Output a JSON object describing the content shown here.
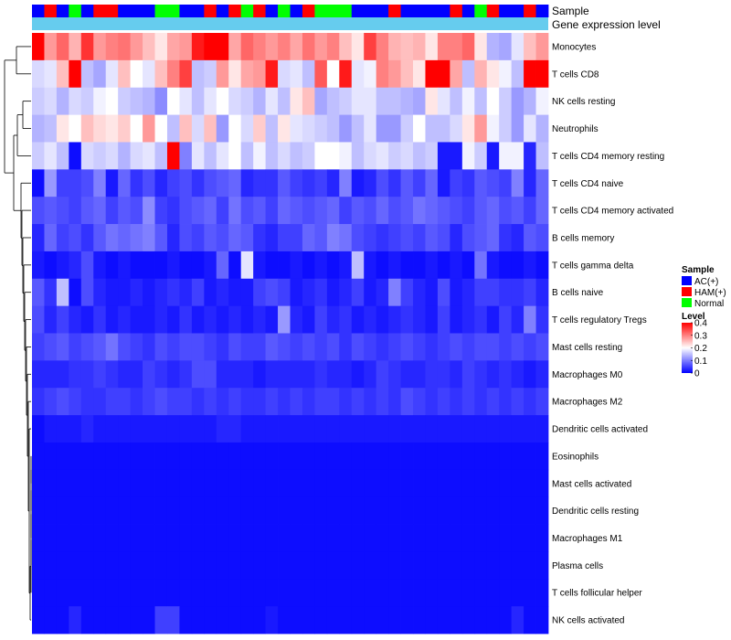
{
  "colors": {
    "AC": "#0000ff",
    "HAM": "#ff0000",
    "Normal": "#00ff00",
    "gene_bar": "#66ccee",
    "low": "#0000ff",
    "mid": "#ffffff",
    "high": "#ff0000"
  },
  "chart_data": {
    "type": "heatmap",
    "annotation_labels": [
      "Sample",
      "Gene expression level"
    ],
    "sample_groups": [
      "AC",
      "HAM",
      "AC",
      "Normal",
      "AC",
      "HAM",
      "HAM",
      "AC",
      "AC",
      "AC",
      "Normal",
      "Normal",
      "AC",
      "AC",
      "HAM",
      "AC",
      "HAM",
      "Normal",
      "HAM",
      "AC",
      "Normal",
      "AC",
      "HAM",
      "Normal",
      "Normal",
      "Normal",
      "AC",
      "AC",
      "AC",
      "HAM",
      "AC",
      "AC",
      "AC",
      "AC",
      "HAM",
      "AC",
      "Normal",
      "HAM",
      "AC",
      "AC",
      "HAM",
      "AC"
    ],
    "rows": [
      "Monocytes",
      "T cells CD8",
      "NK cells resting",
      "Neutrophils",
      "T cells CD4 memory resting",
      "T cells CD4 naive",
      "T cells CD4 memory activated",
      "B cells memory",
      "T cells gamma delta",
      "B cells naive",
      "T cells regulatory  Tregs",
      "Mast cells resting",
      "Macrophages M0",
      "Macrophages M2",
      "Dendritic cells activated",
      "Eosinophils",
      "Mast cells activated",
      "Dendritic cells resting",
      "Macrophages M1",
      "Plasma cells",
      "T cells follicular helper",
      "NK cells activated"
    ],
    "values": [
      [
        0.4,
        0.28,
        0.32,
        0.26,
        0.36,
        0.28,
        0.3,
        0.31,
        0.28,
        0.25,
        0.22,
        0.27,
        0.28,
        0.38,
        0.4,
        0.4,
        0.27,
        0.32,
        0.3,
        0.28,
        0.3,
        0.27,
        0.31,
        0.28,
        0.3,
        0.25,
        0.22,
        0.35,
        0.3,
        0.26,
        0.25,
        0.26,
        0.22,
        0.3,
        0.3,
        0.32,
        0.22,
        0.14,
        0.13,
        0.18,
        0.25,
        0.28
      ],
      [
        0.17,
        0.18,
        0.25,
        0.4,
        0.15,
        0.13,
        0.18,
        0.25,
        0.2,
        0.18,
        0.25,
        0.3,
        0.35,
        0.15,
        0.16,
        0.28,
        0.22,
        0.27,
        0.28,
        0.38,
        0.17,
        0.18,
        0.15,
        0.33,
        0.2,
        0.38,
        0.18,
        0.19,
        0.3,
        0.28,
        0.25,
        0.22,
        0.4,
        0.4,
        0.27,
        0.15,
        0.26,
        0.22,
        0.19,
        0.15,
        0.4,
        0.4
      ],
      [
        0.16,
        0.17,
        0.14,
        0.17,
        0.16,
        0.19,
        0.2,
        0.16,
        0.15,
        0.14,
        0.11,
        0.2,
        0.18,
        0.15,
        0.18,
        0.2,
        0.17,
        0.16,
        0.14,
        0.18,
        0.15,
        0.22,
        0.25,
        0.13,
        0.15,
        0.16,
        0.18,
        0.18,
        0.15,
        0.15,
        0.14,
        0.13,
        0.22,
        0.18,
        0.15,
        0.19,
        0.15,
        0.2,
        0.16,
        0.12,
        0.14,
        0.19
      ],
      [
        0.14,
        0.15,
        0.22,
        0.2,
        0.25,
        0.23,
        0.22,
        0.24,
        0.2,
        0.28,
        0.2,
        0.15,
        0.25,
        0.17,
        0.25,
        0.12,
        0.2,
        0.17,
        0.24,
        0.15,
        0.22,
        0.18,
        0.17,
        0.16,
        0.15,
        0.12,
        0.15,
        0.18,
        0.12,
        0.12,
        0.16,
        0.2,
        0.15,
        0.15,
        0.17,
        0.22,
        0.28,
        0.19,
        0.16,
        0.12,
        0.18,
        0.14
      ],
      [
        0.16,
        0.18,
        0.15,
        0.01,
        0.17,
        0.16,
        0.17,
        0.14,
        0.17,
        0.18,
        0.15,
        0.4,
        0.1,
        0.18,
        0.15,
        0.18,
        0.2,
        0.15,
        0.19,
        0.15,
        0.17,
        0.15,
        0.16,
        0.2,
        0.2,
        0.19,
        0.15,
        0.17,
        0.18,
        0.16,
        0.17,
        0.15,
        0.16,
        0.02,
        0.02,
        0.19,
        0.16,
        0.02,
        0.19,
        0.19,
        0.03,
        0.15
      ],
      [
        0.01,
        0.12,
        0.05,
        0.05,
        0.06,
        0.1,
        0.02,
        0.08,
        0.04,
        0.06,
        0.03,
        0.05,
        0.06,
        0.04,
        0.06,
        0.07,
        0.08,
        0.03,
        0.04,
        0.04,
        0.07,
        0.05,
        0.04,
        0.05,
        0.03,
        0.1,
        0.02,
        0.03,
        0.06,
        0.04,
        0.07,
        0.05,
        0.08,
        0.02,
        0.05,
        0.04,
        0.07,
        0.06,
        0.05,
        0.1,
        0.03,
        0.08
      ],
      [
        0.06,
        0.07,
        0.06,
        0.05,
        0.07,
        0.08,
        0.05,
        0.07,
        0.06,
        0.11,
        0.05,
        0.04,
        0.06,
        0.07,
        0.08,
        0.05,
        0.09,
        0.06,
        0.07,
        0.05,
        0.08,
        0.07,
        0.06,
        0.07,
        0.08,
        0.05,
        0.07,
        0.06,
        0.08,
        0.06,
        0.07,
        0.09,
        0.08,
        0.07,
        0.06,
        0.05,
        0.07,
        0.08,
        0.06,
        0.07,
        0.05,
        0.08
      ],
      [
        0.03,
        0.08,
        0.05,
        0.06,
        0.04,
        0.07,
        0.09,
        0.08,
        0.09,
        0.1,
        0.07,
        0.03,
        0.06,
        0.05,
        0.07,
        0.06,
        0.08,
        0.07,
        0.04,
        0.03,
        0.05,
        0.05,
        0.08,
        0.07,
        0.1,
        0.09,
        0.06,
        0.05,
        0.04,
        0.05,
        0.06,
        0.05,
        0.07,
        0.06,
        0.03,
        0.06,
        0.07,
        0.08,
        0.04,
        0.03,
        0.07,
        0.06
      ],
      [
        0.02,
        0.01,
        0.02,
        0.03,
        0.06,
        0.02,
        0.01,
        0.02,
        0.01,
        0.01,
        0.01,
        0.02,
        0.01,
        0.01,
        0.02,
        0.08,
        0.01,
        0.18,
        0.02,
        0.01,
        0.01,
        0.02,
        0.01,
        0.02,
        0.01,
        0.02,
        0.15,
        0.02,
        0.01,
        0.02,
        0.01,
        0.01,
        0.02,
        0.01,
        0.02,
        0.01,
        0.09,
        0.02,
        0.01,
        0.01,
        0.02,
        0.01
      ],
      [
        0.07,
        0.04,
        0.15,
        0.01,
        0.06,
        0.03,
        0.02,
        0.02,
        0.03,
        0.02,
        0.03,
        0.04,
        0.03,
        0.05,
        0.02,
        0.03,
        0.02,
        0.02,
        0.05,
        0.06,
        0.05,
        0.02,
        0.03,
        0.04,
        0.02,
        0.03,
        0.05,
        0.02,
        0.03,
        0.1,
        0.05,
        0.03,
        0.02,
        0.06,
        0.02,
        0.03,
        0.05,
        0.05,
        0.04,
        0.04,
        0.05,
        0.03
      ],
      [
        0.06,
        0.03,
        0.05,
        0.03,
        0.02,
        0.04,
        0.02,
        0.03,
        0.02,
        0.02,
        0.03,
        0.02,
        0.04,
        0.02,
        0.03,
        0.02,
        0.03,
        0.02,
        0.03,
        0.02,
        0.12,
        0.03,
        0.02,
        0.05,
        0.03,
        0.04,
        0.02,
        0.03,
        0.02,
        0.03,
        0.04,
        0.03,
        0.02,
        0.05,
        0.02,
        0.03,
        0.04,
        0.02,
        0.05,
        0.03,
        0.1,
        0.04
      ],
      [
        0.05,
        0.06,
        0.07,
        0.05,
        0.06,
        0.07,
        0.09,
        0.06,
        0.05,
        0.04,
        0.06,
        0.05,
        0.06,
        0.06,
        0.05,
        0.04,
        0.06,
        0.05,
        0.05,
        0.07,
        0.06,
        0.05,
        0.06,
        0.05,
        0.06,
        0.04,
        0.06,
        0.05,
        0.04,
        0.05,
        0.06,
        0.05,
        0.04,
        0.05,
        0.06,
        0.05,
        0.06,
        0.06,
        0.05,
        0.06,
        0.05,
        0.06
      ],
      [
        0.03,
        0.03,
        0.03,
        0.04,
        0.04,
        0.05,
        0.04,
        0.03,
        0.03,
        0.05,
        0.04,
        0.03,
        0.04,
        0.06,
        0.06,
        0.03,
        0.03,
        0.03,
        0.02,
        0.03,
        0.03,
        0.03,
        0.03,
        0.04,
        0.03,
        0.03,
        0.02,
        0.03,
        0.05,
        0.04,
        0.03,
        0.03,
        0.04,
        0.04,
        0.03,
        0.05,
        0.04,
        0.03,
        0.04,
        0.03,
        0.02,
        0.03
      ],
      [
        0.04,
        0.05,
        0.06,
        0.05,
        0.04,
        0.04,
        0.05,
        0.05,
        0.04,
        0.05,
        0.06,
        0.05,
        0.05,
        0.04,
        0.05,
        0.04,
        0.05,
        0.04,
        0.04,
        0.05,
        0.04,
        0.05,
        0.04,
        0.05,
        0.05,
        0.04,
        0.05,
        0.04,
        0.05,
        0.04,
        0.06,
        0.05,
        0.04,
        0.05,
        0.04,
        0.05,
        0.04,
        0.05,
        0.04,
        0.05,
        0.04,
        0.05
      ],
      [
        0.01,
        0.02,
        0.02,
        0.02,
        0.03,
        0.02,
        0.02,
        0.02,
        0.02,
        0.02,
        0.02,
        0.02,
        0.02,
        0.02,
        0.02,
        0.03,
        0.03,
        0.02,
        0.02,
        0.02,
        0.02,
        0.02,
        0.02,
        0.02,
        0.02,
        0.02,
        0.02,
        0.02,
        0.02,
        0.02,
        0.02,
        0.02,
        0.02,
        0.02,
        0.02,
        0.02,
        0.02,
        0.02,
        0.02,
        0.02,
        0.02,
        0.02
      ],
      [
        0.01,
        0.01,
        0.01,
        0.01,
        0.01,
        0.01,
        0.01,
        0.01,
        0.01,
        0.01,
        0.01,
        0.01,
        0.01,
        0.01,
        0.01,
        0.01,
        0.01,
        0.01,
        0.01,
        0.01,
        0.01,
        0.01,
        0.01,
        0.01,
        0.01,
        0.01,
        0.01,
        0.01,
        0.01,
        0.01,
        0.01,
        0.01,
        0.01,
        0.01,
        0.01,
        0.01,
        0.01,
        0.01,
        0.01,
        0.01,
        0.01,
        0.01
      ],
      [
        0.01,
        0.01,
        0.01,
        0.01,
        0.01,
        0.01,
        0.01,
        0.01,
        0.01,
        0.01,
        0.01,
        0.01,
        0.01,
        0.01,
        0.01,
        0.01,
        0.01,
        0.01,
        0.01,
        0.01,
        0.01,
        0.01,
        0.01,
        0.01,
        0.01,
        0.01,
        0.01,
        0.01,
        0.01,
        0.01,
        0.01,
        0.01,
        0.01,
        0.01,
        0.01,
        0.01,
        0.01,
        0.01,
        0.01,
        0.01,
        0.01,
        0.01
      ],
      [
        0.01,
        0.01,
        0.01,
        0.01,
        0.01,
        0.01,
        0.01,
        0.01,
        0.01,
        0.01,
        0.01,
        0.01,
        0.01,
        0.01,
        0.01,
        0.01,
        0.01,
        0.01,
        0.01,
        0.01,
        0.01,
        0.01,
        0.01,
        0.01,
        0.01,
        0.01,
        0.01,
        0.01,
        0.01,
        0.01,
        0.01,
        0.01,
        0.01,
        0.01,
        0.01,
        0.01,
        0.01,
        0.01,
        0.01,
        0.01,
        0.01,
        0.01
      ],
      [
        0.01,
        0.01,
        0.01,
        0.01,
        0.01,
        0.01,
        0.01,
        0.01,
        0.01,
        0.01,
        0.01,
        0.01,
        0.01,
        0.01,
        0.01,
        0.01,
        0.01,
        0.01,
        0.01,
        0.01,
        0.01,
        0.01,
        0.01,
        0.01,
        0.01,
        0.01,
        0.01,
        0.01,
        0.01,
        0.01,
        0.01,
        0.01,
        0.01,
        0.01,
        0.01,
        0.01,
        0.01,
        0.01,
        0.01,
        0.01,
        0.01,
        0.01
      ],
      [
        0.01,
        0.01,
        0.01,
        0.01,
        0.01,
        0.01,
        0.01,
        0.01,
        0.01,
        0.01,
        0.01,
        0.01,
        0.01,
        0.01,
        0.01,
        0.01,
        0.01,
        0.01,
        0.01,
        0.01,
        0.01,
        0.01,
        0.01,
        0.01,
        0.01,
        0.01,
        0.01,
        0.01,
        0.01,
        0.01,
        0.01,
        0.01,
        0.01,
        0.01,
        0.01,
        0.01,
        0.01,
        0.01,
        0.01,
        0.01,
        0.01,
        0.01
      ],
      [
        0.01,
        0.01,
        0.01,
        0.01,
        0.01,
        0.01,
        0.01,
        0.01,
        0.01,
        0.01,
        0.01,
        0.01,
        0.01,
        0.01,
        0.01,
        0.01,
        0.01,
        0.01,
        0.01,
        0.01,
        0.01,
        0.01,
        0.01,
        0.01,
        0.01,
        0.01,
        0.01,
        0.01,
        0.01,
        0.01,
        0.01,
        0.01,
        0.01,
        0.01,
        0.01,
        0.01,
        0.01,
        0.01,
        0.01,
        0.01,
        0.01,
        0.01
      ],
      [
        0.01,
        0.01,
        0.01,
        0.03,
        0.01,
        0.01,
        0.01,
        0.01,
        0.01,
        0.01,
        0.05,
        0.05,
        0.01,
        0.01,
        0.01,
        0.01,
        0.01,
        0.01,
        0.01,
        0.02,
        0.01,
        0.01,
        0.01,
        0.01,
        0.01,
        0.01,
        0.01,
        0.01,
        0.01,
        0.01,
        0.01,
        0.01,
        0.01,
        0.01,
        0.01,
        0.01,
        0.01,
        0.01,
        0.01,
        0.03,
        0.01,
        0.01
      ]
    ],
    "color_scale": {
      "min": 0,
      "max": 0.4,
      "colors": [
        "blue",
        "white",
        "red"
      ]
    },
    "legend": {
      "position": "right",
      "sample_title": "Sample",
      "sample_entries": [
        {
          "label": "AC(+)",
          "group": "AC"
        },
        {
          "label": "HAM(+)",
          "group": "HAM"
        },
        {
          "label": "Normal",
          "group": "Normal"
        }
      ],
      "level_title": "Level",
      "level_ticks": [
        "0.4",
        "0.3",
        "0.2",
        "0.1",
        "0"
      ],
      "level_tick_values": [
        0.4,
        0.3,
        0.2,
        0.1,
        0
      ]
    },
    "dendrogram": "rows"
  }
}
